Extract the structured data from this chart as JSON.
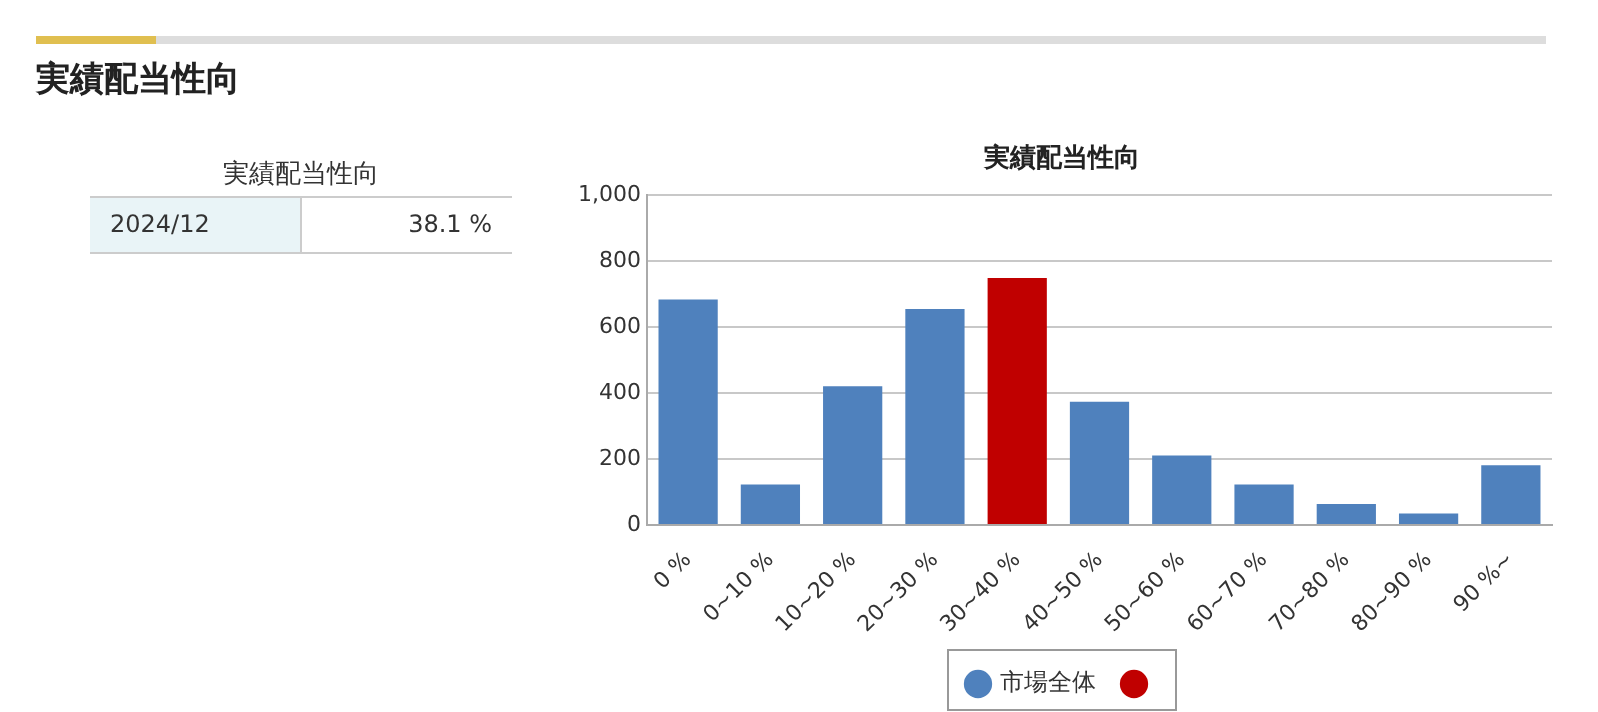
{
  "chart_data": [
    {
      "type": "other",
      "title": "実績配当性向",
      "subtitle": "実績配当性向",
      "annotations": [
        "2024/12",
        "38.1 %"
      ]
    },
    {
      "type": "bar",
      "title": "実績配当性向",
      "categories": [
        "0 %",
        "0~10 %",
        "10~20 %",
        "20~30 %",
        "30~40 %",
        "40~50 %",
        "50~60 %",
        "60~70 %",
        "70~80 %",
        "80~90 %",
        "90 %~"
      ],
      "stacked": true,
      "series": [
        {
          "name": "市場全体",
          "color": "#4f81bd",
          "values": [
            684,
            123,
            421,
            655,
            null,
            374,
            211,
            123,
            64,
            35,
            181
          ]
        },
        {
          "color": "#c00000",
          "values": [
            null,
            null,
            null,
            null,
            749,
            null,
            null,
            null,
            null,
            null,
            null
          ]
        }
      ],
      "ylim": [
        0,
        1000
      ],
      "yticks": [
        0,
        200,
        400,
        600,
        800,
        {
          "value": 1000,
          "label": "1,000"
        }
      ],
      "grid": "y",
      "legend": "bottom"
    }
  ]
}
